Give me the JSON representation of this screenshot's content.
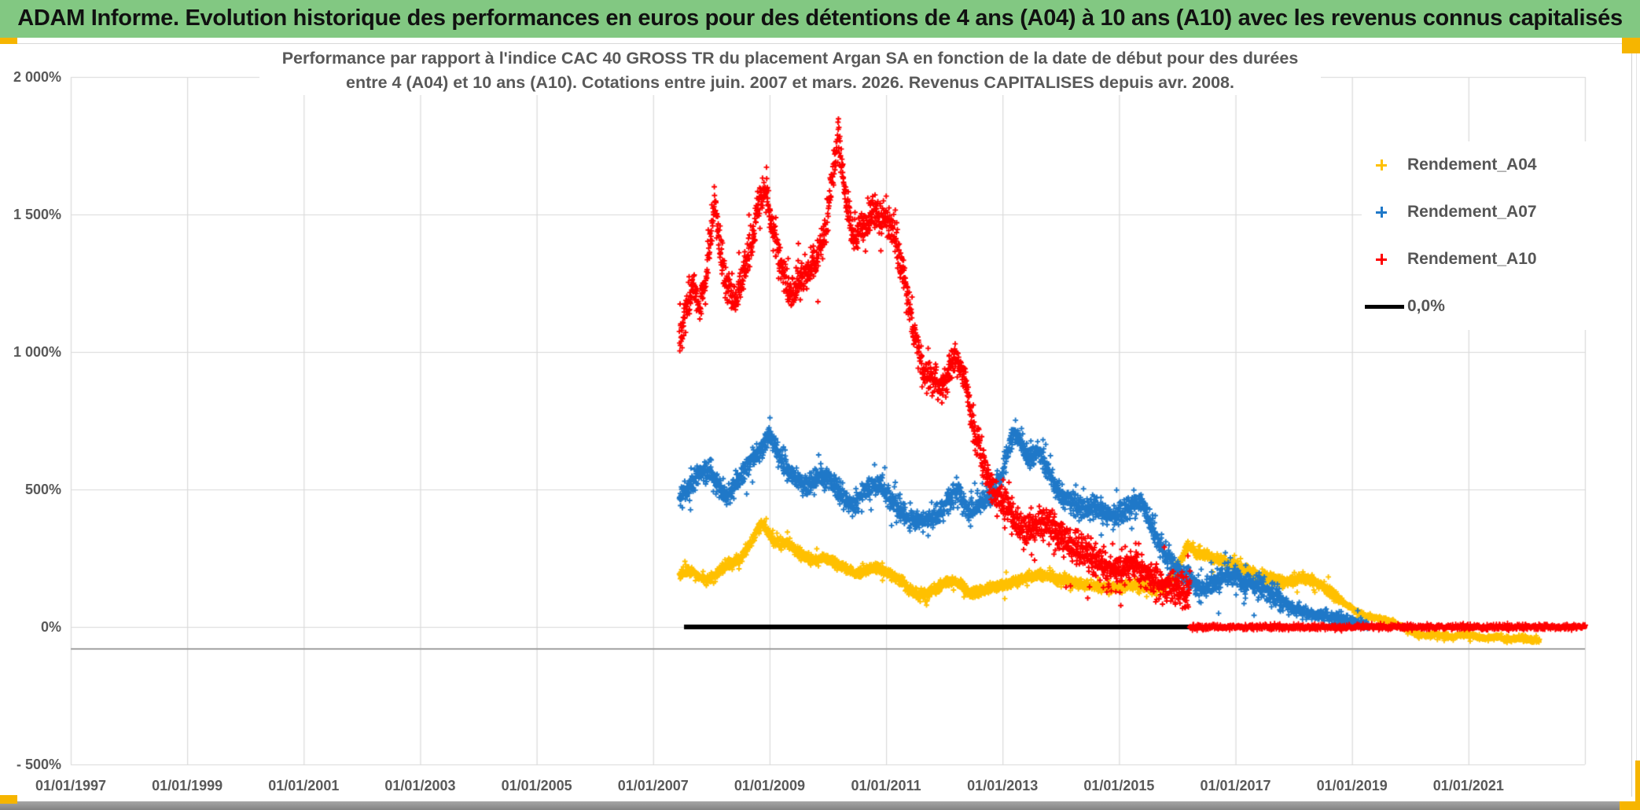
{
  "header": {
    "title": "ADAM Informe. Evolution historique des performances en euros pour des détentions de 4 ans (A04) à 10 ans (A10) avec les revenus connus capitalisés"
  },
  "chart_data": {
    "type": "scatter",
    "title_line1": "Performance par rapport à l'indice CAC 40 GROSS TR  du placement Argan SA en fonction de la date de début pour des durées",
    "title_line2": "entre 4 (A04) et 10 ans (A10). Cotations entre juin. 2007 et mars. 2026. Revenus CAPITALISES depuis avr. 2008.",
    "x_domain": [
      1997,
      2023
    ],
    "y_domain": [
      -500,
      2000
    ],
    "grid": "both",
    "legend_position": "right",
    "gridline_color": "#d9d9d9",
    "axis_text_color": "#595959",
    "axis_crossing_line": {
      "value": -80,
      "color": "#a0a0a0"
    },
    "x_ticks": [
      {
        "label": "01/01/1997",
        "year": 1997
      },
      {
        "label": "01/01/1999",
        "year": 1999
      },
      {
        "label": "01/01/2001",
        "year": 2001
      },
      {
        "label": "01/01/2003",
        "year": 2003
      },
      {
        "label": "01/01/2005",
        "year": 2005
      },
      {
        "label": "01/01/2007",
        "year": 2007
      },
      {
        "label": "01/01/2009",
        "year": 2009
      },
      {
        "label": "01/01/2011",
        "year": 2011
      },
      {
        "label": "01/01/2013",
        "year": 2013
      },
      {
        "label": "01/01/2015",
        "year": 2015
      },
      {
        "label": "01/01/2017",
        "year": 2017
      },
      {
        "label": "01/01/2019",
        "year": 2019
      },
      {
        "label": "01/01/2021",
        "year": 2021
      }
    ],
    "y_ticks": [
      {
        "label": "2 000%",
        "value": 2000
      },
      {
        "label": "1 500%",
        "value": 1500
      },
      {
        "label": "1 000%",
        "value": 1000
      },
      {
        "label": "500%",
        "value": 500
      },
      {
        "label": "0%",
        "value": 0
      },
      {
        "label": "- 500%",
        "value": -500
      }
    ],
    "series": [
      {
        "name": "Rendement_A04",
        "color": "#FFC000",
        "marker": "plus",
        "band_halfwidth_pct": 16,
        "anchor_points": [
          [
            2007.45,
            190
          ],
          [
            2007.6,
            205
          ],
          [
            2007.75,
            190
          ],
          [
            2007.9,
            170
          ],
          [
            2008.05,
            185
          ],
          [
            2008.2,
            215
          ],
          [
            2008.35,
            230
          ],
          [
            2008.5,
            250
          ],
          [
            2008.65,
            295
          ],
          [
            2008.8,
            355
          ],
          [
            2008.88,
            380
          ],
          [
            2009.0,
            335
          ],
          [
            2009.15,
            295
          ],
          [
            2009.3,
            310
          ],
          [
            2009.45,
            280
          ],
          [
            2009.6,
            255
          ],
          [
            2009.75,
            240
          ],
          [
            2009.9,
            250
          ],
          [
            2010.05,
            240
          ],
          [
            2010.2,
            225
          ],
          [
            2010.35,
            205
          ],
          [
            2010.5,
            195
          ],
          [
            2010.65,
            205
          ],
          [
            2010.8,
            215
          ],
          [
            2010.95,
            205
          ],
          [
            2011.1,
            190
          ],
          [
            2011.25,
            170
          ],
          [
            2011.4,
            135
          ],
          [
            2011.55,
            115
          ],
          [
            2011.7,
            120
          ],
          [
            2011.85,
            140
          ],
          [
            2012.0,
            160
          ],
          [
            2012.15,
            168
          ],
          [
            2012.3,
            150
          ],
          [
            2012.45,
            122
          ],
          [
            2012.6,
            128
          ],
          [
            2012.75,
            145
          ],
          [
            2012.9,
            150
          ],
          [
            2013.05,
            152
          ],
          [
            2013.2,
            165
          ],
          [
            2013.35,
            175
          ],
          [
            2013.5,
            185
          ],
          [
            2013.65,
            190
          ],
          [
            2013.8,
            182
          ],
          [
            2013.95,
            175
          ],
          [
            2014.1,
            170
          ],
          [
            2014.25,
            162
          ],
          [
            2014.4,
            155
          ],
          [
            2014.55,
            150
          ],
          [
            2014.7,
            145
          ],
          [
            2014.85,
            140
          ],
          [
            2015.0,
            142
          ],
          [
            2015.15,
            155
          ],
          [
            2015.3,
            150
          ],
          [
            2015.45,
            142
          ],
          [
            2015.6,
            135
          ],
          [
            2015.75,
            145
          ],
          [
            2015.9,
            175
          ],
          [
            2016.05,
            235
          ],
          [
            2016.18,
            295
          ],
          [
            2016.32,
            272
          ],
          [
            2016.48,
            262
          ],
          [
            2016.64,
            248
          ],
          [
            2016.8,
            238
          ],
          [
            2016.95,
            230
          ],
          [
            2017.1,
            215
          ],
          [
            2017.25,
            200
          ],
          [
            2017.4,
            188
          ],
          [
            2017.55,
            176
          ],
          [
            2017.7,
            167
          ],
          [
            2017.85,
            162
          ],
          [
            2018.0,
            172
          ],
          [
            2018.15,
            180
          ],
          [
            2018.3,
            170
          ],
          [
            2018.45,
            155
          ],
          [
            2018.6,
            130
          ],
          [
            2018.75,
            105
          ],
          [
            2018.9,
            82
          ],
          [
            2019.05,
            58
          ],
          [
            2019.2,
            42
          ],
          [
            2019.35,
            36
          ],
          [
            2019.5,
            30
          ],
          [
            2019.65,
            20
          ],
          [
            2019.8,
            6
          ],
          [
            2019.95,
            -10
          ],
          [
            2020.1,
            -22
          ],
          [
            2020.25,
            -32
          ],
          [
            2020.4,
            -26
          ],
          [
            2020.55,
            -32
          ],
          [
            2020.7,
            -36
          ],
          [
            2020.85,
            -30
          ],
          [
            2021.0,
            -26
          ],
          [
            2021.15,
            -36
          ],
          [
            2021.3,
            -42
          ],
          [
            2021.45,
            -36
          ],
          [
            2021.6,
            -42
          ],
          [
            2021.75,
            -46
          ],
          [
            2021.9,
            -40
          ],
          [
            2022.05,
            -46
          ],
          [
            2022.22,
            -50
          ]
        ]
      },
      {
        "name": "Rendement_A07",
        "color": "#1F78C8",
        "marker": "plus",
        "band_halfwidth_pct": 34,
        "anchor_points": [
          [
            2007.45,
            470
          ],
          [
            2007.6,
            500
          ],
          [
            2007.75,
            545
          ],
          [
            2007.9,
            570
          ],
          [
            2008.0,
            555
          ],
          [
            2008.15,
            505
          ],
          [
            2008.3,
            480
          ],
          [
            2008.45,
            530
          ],
          [
            2008.6,
            575
          ],
          [
            2008.75,
            620
          ],
          [
            2008.9,
            655
          ],
          [
            2009.0,
            695
          ],
          [
            2009.1,
            655
          ],
          [
            2009.25,
            590
          ],
          [
            2009.4,
            550
          ],
          [
            2009.55,
            520
          ],
          [
            2009.7,
            510
          ],
          [
            2009.85,
            550
          ],
          [
            2010.0,
            540
          ],
          [
            2010.15,
            500
          ],
          [
            2010.3,
            460
          ],
          [
            2010.45,
            440
          ],
          [
            2010.6,
            480
          ],
          [
            2010.75,
            510
          ],
          [
            2010.9,
            525
          ],
          [
            2011.05,
            470
          ],
          [
            2011.2,
            430
          ],
          [
            2011.35,
            405
          ],
          [
            2011.5,
            390
          ],
          [
            2011.65,
            385
          ],
          [
            2011.8,
            400
          ],
          [
            2011.95,
            420
          ],
          [
            2012.1,
            475
          ],
          [
            2012.25,
            495
          ],
          [
            2012.4,
            420
          ],
          [
            2012.55,
            440
          ],
          [
            2012.7,
            465
          ],
          [
            2012.85,
            490
          ],
          [
            2013.0,
            560
          ],
          [
            2013.1,
            650
          ],
          [
            2013.2,
            715
          ],
          [
            2013.32,
            665
          ],
          [
            2013.45,
            615
          ],
          [
            2013.6,
            640
          ],
          [
            2013.75,
            590
          ],
          [
            2013.9,
            515
          ],
          [
            2014.05,
            470
          ],
          [
            2014.2,
            450
          ],
          [
            2014.35,
            430
          ],
          [
            2014.5,
            440
          ],
          [
            2014.65,
            425
          ],
          [
            2014.8,
            408
          ],
          [
            2014.95,
            398
          ],
          [
            2015.1,
            420
          ],
          [
            2015.25,
            445
          ],
          [
            2015.38,
            455
          ],
          [
            2015.52,
            395
          ],
          [
            2015.66,
            320
          ],
          [
            2015.8,
            260
          ],
          [
            2015.95,
            225
          ],
          [
            2016.1,
            190
          ],
          [
            2016.25,
            165
          ],
          [
            2016.4,
            135
          ],
          [
            2016.55,
            150
          ],
          [
            2016.7,
            170
          ],
          [
            2016.85,
            195
          ],
          [
            2016.97,
            185
          ],
          [
            2017.1,
            168
          ],
          [
            2017.25,
            152
          ],
          [
            2017.4,
            148
          ],
          [
            2017.55,
            132
          ],
          [
            2017.7,
            112
          ],
          [
            2017.85,
            88
          ],
          [
            2018.0,
            68
          ],
          [
            2018.15,
            57
          ],
          [
            2018.3,
            48
          ],
          [
            2018.5,
            42
          ],
          [
            2018.7,
            35
          ],
          [
            2018.9,
            26
          ],
          [
            2019.05,
            16
          ],
          [
            2019.27,
            8
          ]
        ]
      },
      {
        "name": "Rendement_A10",
        "color": "#FF0000",
        "marker": "plus",
        "band_halfwidth_pct": 55,
        "zero_value_segment": {
          "from": 2016.22,
          "to": 2023.0,
          "value": 0
        },
        "anchor_points": [
          [
            2007.45,
            1030
          ],
          [
            2007.55,
            1150
          ],
          [
            2007.7,
            1240
          ],
          [
            2007.8,
            1160
          ],
          [
            2007.9,
            1260
          ],
          [
            2008.0,
            1450
          ],
          [
            2008.05,
            1550
          ],
          [
            2008.15,
            1380
          ],
          [
            2008.25,
            1250
          ],
          [
            2008.4,
            1180
          ],
          [
            2008.55,
            1280
          ],
          [
            2008.7,
            1400
          ],
          [
            2008.82,
            1560
          ],
          [
            2008.95,
            1580
          ],
          [
            2009.05,
            1450
          ],
          [
            2009.2,
            1320
          ],
          [
            2009.35,
            1220
          ],
          [
            2009.5,
            1250
          ],
          [
            2009.65,
            1300
          ],
          [
            2009.8,
            1350
          ],
          [
            2009.95,
            1440
          ],
          [
            2010.1,
            1650
          ],
          [
            2010.18,
            1800
          ],
          [
            2010.28,
            1600
          ],
          [
            2010.42,
            1420
          ],
          [
            2010.55,
            1450
          ],
          [
            2010.7,
            1480
          ],
          [
            2010.85,
            1500
          ],
          [
            2011.0,
            1480
          ],
          [
            2011.15,
            1420
          ],
          [
            2011.3,
            1280
          ],
          [
            2011.45,
            1100
          ],
          [
            2011.55,
            1000
          ],
          [
            2011.65,
            920
          ],
          [
            2011.8,
            900
          ],
          [
            2011.95,
            880
          ],
          [
            2012.1,
            930
          ],
          [
            2012.2,
            980
          ],
          [
            2012.35,
            900
          ],
          [
            2012.5,
            730
          ],
          [
            2012.65,
            620
          ],
          [
            2012.8,
            510
          ],
          [
            2012.95,
            470
          ],
          [
            2013.1,
            430
          ],
          [
            2013.25,
            380
          ],
          [
            2013.4,
            340
          ],
          [
            2013.55,
            360
          ],
          [
            2013.7,
            385
          ],
          [
            2013.85,
            360
          ],
          [
            2014.0,
            330
          ],
          [
            2014.15,
            300
          ],
          [
            2014.3,
            285
          ],
          [
            2014.45,
            270
          ],
          [
            2014.6,
            240
          ],
          [
            2014.8,
            210
          ],
          [
            2015.0,
            205
          ],
          [
            2015.15,
            230
          ],
          [
            2015.3,
            225
          ],
          [
            2015.45,
            200
          ],
          [
            2015.6,
            170
          ],
          [
            2015.75,
            155
          ],
          [
            2015.9,
            145
          ],
          [
            2016.05,
            135
          ],
          [
            2016.22,
            125
          ]
        ]
      },
      {
        "name": "0,0%",
        "color": "#000000",
        "marker": "line",
        "line_segment": {
          "from": 2007.53,
          "to": 2016.22,
          "value": 0,
          "thickness": 6
        }
      }
    ]
  },
  "accents": {
    "orange": "#f6b500",
    "bottom_bar_gray": "#8f8f8f",
    "header_green": "#82c882"
  }
}
